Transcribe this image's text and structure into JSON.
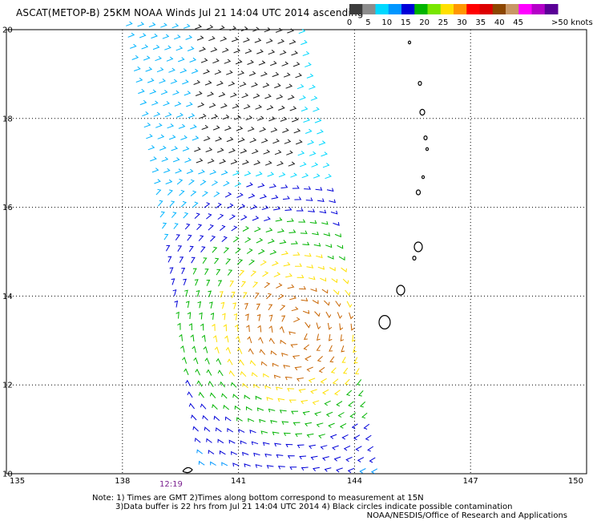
{
  "title": "ASCAT(METOP-B) 25KM NOAA Winds Jul 21 14:04 UTC 2014 ascending",
  "legend": {
    "colors": [
      "#3c3c3c",
      "#8c8c8c",
      "#00d8ff",
      "#0096ff",
      "#0000d8",
      "#00b400",
      "#78e600",
      "#ffe000",
      "#ff9600",
      "#ff0000",
      "#dc0000",
      "#8c4600",
      "#c89664",
      "#ff00ff",
      "#b400c8",
      "#5a0096"
    ],
    "tick_labels": [
      "0",
      "5",
      "10",
      "15",
      "20",
      "25",
      "30",
      "35",
      "40",
      "45",
      ">50 knots"
    ]
  },
  "axes": {
    "lon_labels": [
      "135",
      "138",
      "141",
      "144",
      "147",
      "150"
    ],
    "lat_labels": [
      "10",
      "12",
      "14",
      "16",
      "18",
      "20"
    ]
  },
  "swath_time": "12:19",
  "notes": {
    "line1": "Note: 1) Times are GMT 2)Times along bottom correspond to measurement at 15N",
    "line2": "3)Data buffer is 22 hrs from Jul 21 14:04 UTC 2014 4) Black circles indicate possible contamination",
    "credit": "NOAA/NESDIS/Office of Research and Applications"
  }
}
